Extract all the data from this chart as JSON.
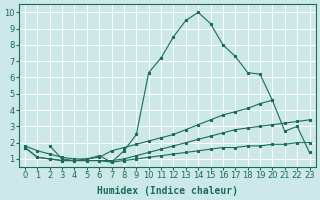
{
  "xlabel": "Humidex (Indice chaleur)",
  "bg_color": "#cce8e8",
  "grid_color": "#ffffff",
  "line_color": "#1a6b5a",
  "xlim": [
    -0.5,
    23.5
  ],
  "ylim": [
    0.5,
    10.5
  ],
  "xticks": [
    0,
    1,
    2,
    3,
    4,
    5,
    6,
    7,
    8,
    9,
    10,
    11,
    12,
    13,
    14,
    15,
    16,
    17,
    18,
    19,
    20,
    21,
    22,
    23
  ],
  "yticks": [
    1,
    2,
    3,
    4,
    5,
    6,
    7,
    8,
    9,
    10
  ],
  "line_peak_x": [
    2,
    3,
    4,
    5,
    6,
    7,
    8,
    9,
    10,
    11,
    12,
    13,
    14,
    15,
    16,
    17,
    18,
    19,
    20
  ],
  "line_peak_y": [
    1.8,
    1.0,
    0.9,
    1.0,
    1.2,
    0.8,
    1.5,
    2.5,
    6.3,
    7.2,
    8.5,
    9.5,
    10.0,
    9.3,
    8.0,
    7.3,
    6.3,
    6.2,
    4.6
  ],
  "line_diag_x": [
    0,
    1,
    2,
    3,
    4,
    5,
    6,
    7,
    8,
    9,
    10,
    11,
    12,
    13,
    14,
    15,
    16,
    17,
    18,
    19,
    20,
    21,
    22,
    23
  ],
  "line_diag_y": [
    1.8,
    1.5,
    1.3,
    1.1,
    1.0,
    1.0,
    1.1,
    1.5,
    1.7,
    1.9,
    2.1,
    2.3,
    2.5,
    2.8,
    3.1,
    3.4,
    3.7,
    3.9,
    4.1,
    4.4,
    4.6,
    2.7,
    3.0,
    1.4
  ],
  "line_mid_x": [
    0,
    1,
    2,
    3,
    4,
    5,
    6,
    7,
    8,
    9,
    10,
    11,
    12,
    13,
    14,
    15,
    16,
    17,
    18,
    19,
    20,
    21,
    22,
    23
  ],
  "line_mid_y": [
    1.7,
    1.1,
    1.0,
    0.9,
    0.9,
    0.9,
    0.9,
    0.9,
    1.0,
    1.2,
    1.4,
    1.6,
    1.8,
    2.0,
    2.2,
    2.4,
    2.6,
    2.8,
    2.9,
    3.0,
    3.1,
    3.2,
    3.3,
    3.4
  ],
  "line_flat_x": [
    0,
    1,
    2,
    3,
    4,
    5,
    6,
    7,
    8,
    9,
    10,
    11,
    12,
    13,
    14,
    15,
    16,
    17,
    18,
    19,
    20,
    21,
    22,
    23
  ],
  "line_flat_y": [
    1.7,
    1.1,
    1.0,
    0.9,
    0.9,
    0.9,
    0.9,
    0.8,
    0.9,
    1.0,
    1.1,
    1.2,
    1.3,
    1.4,
    1.5,
    1.6,
    1.7,
    1.7,
    1.8,
    1.8,
    1.9,
    1.9,
    2.0,
    2.0
  ],
  "fontsize_label": 7,
  "fontsize_tick": 6
}
